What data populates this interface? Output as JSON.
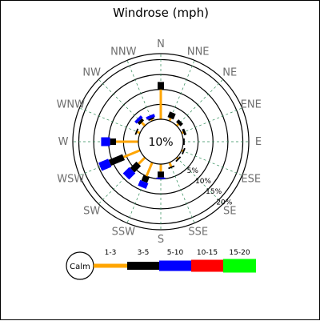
{
  "chart_data": {
    "type": "windrose",
    "title": "Windrose (mph)",
    "center_label": "10%",
    "calm_label": "Calm",
    "directions": [
      "N",
      "NNE",
      "NE",
      "ENE",
      "E",
      "ESE",
      "SE",
      "SSE",
      "S",
      "SSW",
      "SW",
      "WSW",
      "W",
      "WNW",
      "NW",
      "NNW"
    ],
    "ring_labels": [
      "5%",
      "10%",
      "15%",
      "20%"
    ],
    "ring_values": [
      5,
      10,
      15,
      20
    ],
    "max_value": 22,
    "grid": true,
    "legend_position": "bottom",
    "speed_bins": [
      {
        "label": "1-3",
        "color": "#ffa500"
      },
      {
        "label": "3-5",
        "color": "#000000"
      },
      {
        "label": "5-10",
        "color": "#0000ff"
      },
      {
        "label": "10-15",
        "color": "#ff0000"
      },
      {
        "label": "15-20",
        "color": "#00ff00"
      }
    ],
    "series": [
      {
        "direction": "N",
        "segments": [
          10.0,
          2.5,
          0.0
        ]
      },
      {
        "direction": "NNE",
        "segments": [
          1.0,
          2.0,
          0.0
        ]
      },
      {
        "direction": "NE",
        "segments": [
          0.8,
          1.2,
          0.0
        ]
      },
      {
        "direction": "ENE",
        "segments": [
          0.6,
          0.8,
          0.0
        ]
      },
      {
        "direction": "E",
        "segments": [
          0.0,
          0.5,
          0.0
        ]
      },
      {
        "direction": "ESE",
        "segments": [
          0.5,
          0.5,
          0.0
        ]
      },
      {
        "direction": "SE",
        "segments": [
          0.5,
          0.5,
          0.0
        ]
      },
      {
        "direction": "SSE",
        "segments": [
          1.5,
          0.5,
          0.0
        ]
      },
      {
        "direction": "S",
        "segments": [
          2.5,
          2.0,
          0.5
        ]
      },
      {
        "direction": "SSW",
        "segments": [
          5.0,
          2.0,
          2.0
        ]
      },
      {
        "direction": "SW",
        "segments": [
          3.0,
          3.0,
          3.0
        ]
      },
      {
        "direction": "WSW",
        "segments": [
          6.0,
          5.0,
          3.5
        ]
      },
      {
        "direction": "W",
        "segments": [
          7.5,
          2.0,
          3.0
        ]
      },
      {
        "direction": "WNW",
        "segments": [
          1.0,
          0.5,
          0.0
        ]
      },
      {
        "direction": "NW",
        "segments": [
          1.5,
          1.0,
          1.0
        ]
      },
      {
        "direction": "NNW",
        "segments": [
          0.5,
          0.5,
          1.0
        ]
      }
    ]
  }
}
